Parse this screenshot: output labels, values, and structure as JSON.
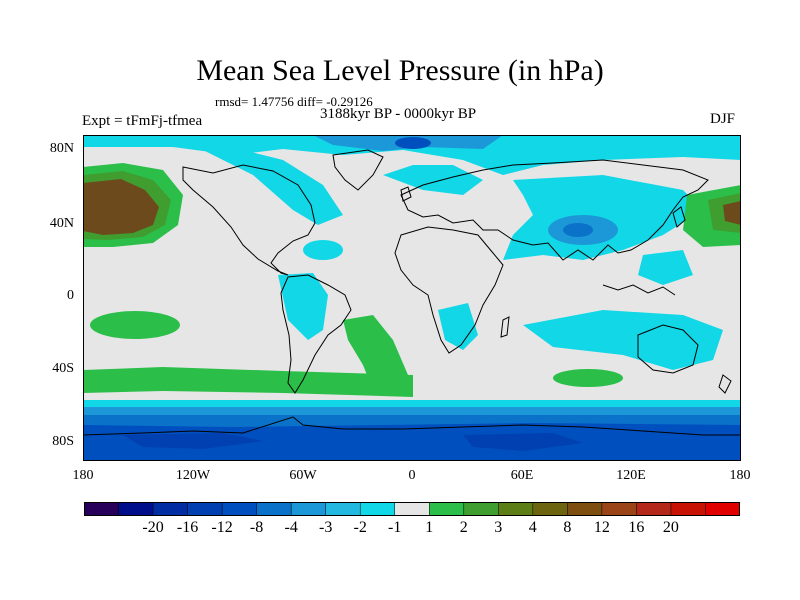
{
  "title": "Mean Sea Level Pressure (in hPa)",
  "stats": "rmsd= 1.47756 diff= -0.29126",
  "period": "3188kyr BP - 0000kyr BP",
  "experiment": "Expt = tFmFj-tfmea",
  "season": "DJF",
  "lat_labels": [
    "80N",
    "40N",
    "0",
    "40S",
    "80S"
  ],
  "lon_labels": [
    "180",
    "120W",
    "60W",
    "0",
    "60E",
    "120E",
    "180"
  ],
  "colorbar": {
    "colors": [
      "#26005a",
      "#000e8c",
      "#002ea2",
      "#0040b0",
      "#004fbf",
      "#0a72c8",
      "#1c98d8",
      "#22b8e0",
      "#11d7e6",
      "#e6e6e6",
      "#2bbf4a",
      "#3f9e2f",
      "#5d7e16",
      "#6d6410",
      "#7e4d10",
      "#9a4417",
      "#b32818",
      "#c81205",
      "#e00000"
    ],
    "labels": [
      "-20",
      "-16",
      "-12",
      "-8",
      "-4",
      "-3",
      "-2",
      "-1",
      "1",
      "2",
      "3",
      "4",
      "8",
      "12",
      "16",
      "20"
    ]
  },
  "colors": {
    "background": "#e6e6e6",
    "neg1": "#11d7e6",
    "neg2": "#1c98d8",
    "neg3": "#0a72c8",
    "neg4": "#004fbf",
    "neg8": "#0040b0",
    "pos1": "#2bbf4a",
    "pos2": "#3f9e2f",
    "pos4": "#5d7e16",
    "pos8": "#6d4a1c"
  }
}
